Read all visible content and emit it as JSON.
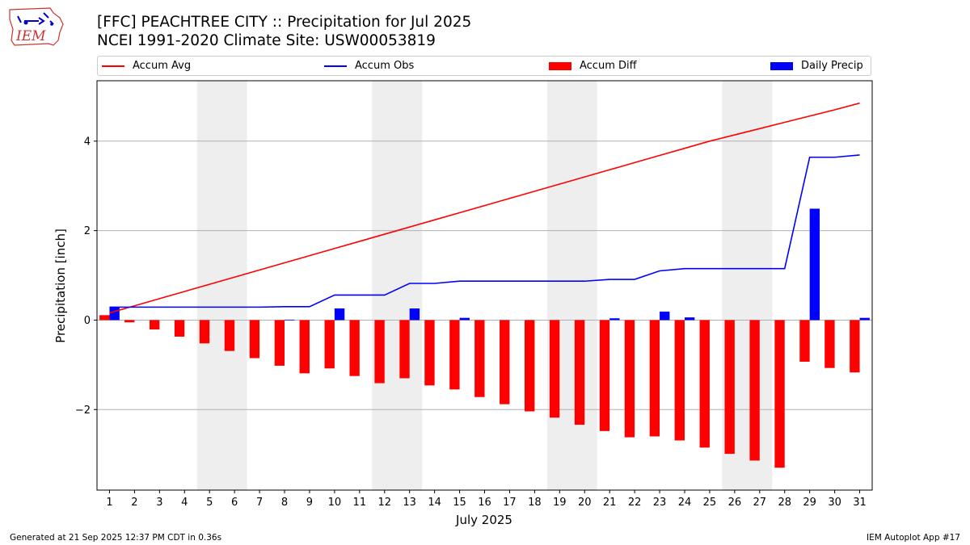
{
  "title_line1": "[FFC] PEACHTREE CITY :: Precipitation for Jul 2025",
  "title_line2": "NCEI 1991-2020 Climate Site: USW00053819",
  "logo_text": "IEM",
  "footer_left": "Generated at 21 Sep 2025 12:37 PM CDT in 0.36s",
  "footer_right": "IEM Autoplot App #17",
  "colors": {
    "avg": "#ff0000",
    "obs": "#0000ff",
    "diff": "#ff0000",
    "daily": "#0000ff",
    "weekend": "#eeeeee",
    "grid": "#b0b0b0"
  },
  "chart_data": {
    "type": "bar",
    "title": "[FFC] PEACHTREE CITY :: Precipitation for Jul 2025",
    "xlabel": "July 2025",
    "ylabel": "Precipitation [inch]",
    "xlim": [
      0.5,
      31.5
    ],
    "ylim": [
      -3.8,
      5.35
    ],
    "yticks": [
      -2,
      0,
      2,
      4
    ],
    "ytick_labels": [
      "−2",
      "0",
      "2",
      "4"
    ],
    "x": [
      1,
      2,
      3,
      4,
      5,
      6,
      7,
      8,
      9,
      10,
      11,
      12,
      13,
      14,
      15,
      16,
      17,
      18,
      19,
      20,
      21,
      22,
      23,
      24,
      25,
      26,
      27,
      28,
      29,
      30,
      31
    ],
    "xtick_labels": [
      "1",
      "2",
      "3",
      "4",
      "5",
      "6",
      "7",
      "8",
      "9",
      "10",
      "11",
      "12",
      "13",
      "14",
      "15",
      "16",
      "17",
      "18",
      "19",
      "20",
      "21",
      "22",
      "23",
      "24",
      "25",
      "26",
      "27",
      "28",
      "29",
      "30",
      "31"
    ],
    "weekend_spans": [
      [
        4.5,
        6.5
      ],
      [
        11.5,
        13.5
      ],
      [
        18.5,
        20.5
      ],
      [
        25.5,
        27.5
      ]
    ],
    "legend": [
      "Accum Avg",
      "Accum Obs",
      "Accum Diff",
      "Daily Precip"
    ],
    "series": [
      {
        "name": "Accum Avg",
        "type": "line",
        "values": [
          0.16,
          0.32,
          0.48,
          0.64,
          0.8,
          0.96,
          1.12,
          1.28,
          1.44,
          1.6,
          1.76,
          1.92,
          2.08,
          2.24,
          2.4,
          2.56,
          2.72,
          2.88,
          3.04,
          3.2,
          3.36,
          3.52,
          3.68,
          3.84,
          4.0,
          4.14,
          4.28,
          4.42,
          4.56,
          4.7,
          4.85
        ]
      },
      {
        "name": "Accum Obs",
        "type": "line",
        "values": [
          0.29,
          0.29,
          0.29,
          0.29,
          0.29,
          0.29,
          0.29,
          0.3,
          0.3,
          0.56,
          0.56,
          0.56,
          0.82,
          0.82,
          0.87,
          0.87,
          0.87,
          0.87,
          0.87,
          0.87,
          0.91,
          0.91,
          1.1,
          1.15,
          1.15,
          1.15,
          1.15,
          1.15,
          3.64,
          3.64,
          3.69
        ]
      },
      {
        "name": "Accum Diff",
        "type": "bar",
        "values": [
          0.11,
          -0.05,
          -0.21,
          -0.37,
          -0.52,
          -0.69,
          -0.85,
          -1.02,
          -1.19,
          -1.08,
          -1.25,
          -1.41,
          -1.3,
          -1.46,
          -1.55,
          -1.72,
          -1.88,
          -2.04,
          -2.18,
          -2.34,
          -2.48,
          -2.62,
          -2.6,
          -2.69,
          -2.85,
          -2.99,
          -3.14,
          -3.3,
          -0.93,
          -1.07,
          -1.17
        ]
      },
      {
        "name": "Daily Precip",
        "type": "bar",
        "values": [
          0.29,
          0.0,
          0.0,
          0.0,
          0.0,
          0.0,
          0.0,
          0.01,
          0.0,
          0.26,
          0.0,
          0.0,
          0.26,
          0.0,
          0.05,
          0.0,
          0.0,
          0.0,
          0.0,
          0.0,
          0.04,
          0.0,
          0.19,
          0.06,
          0.0,
          0.0,
          0.0,
          0.0,
          2.49,
          0.0,
          0.05
        ]
      }
    ]
  }
}
